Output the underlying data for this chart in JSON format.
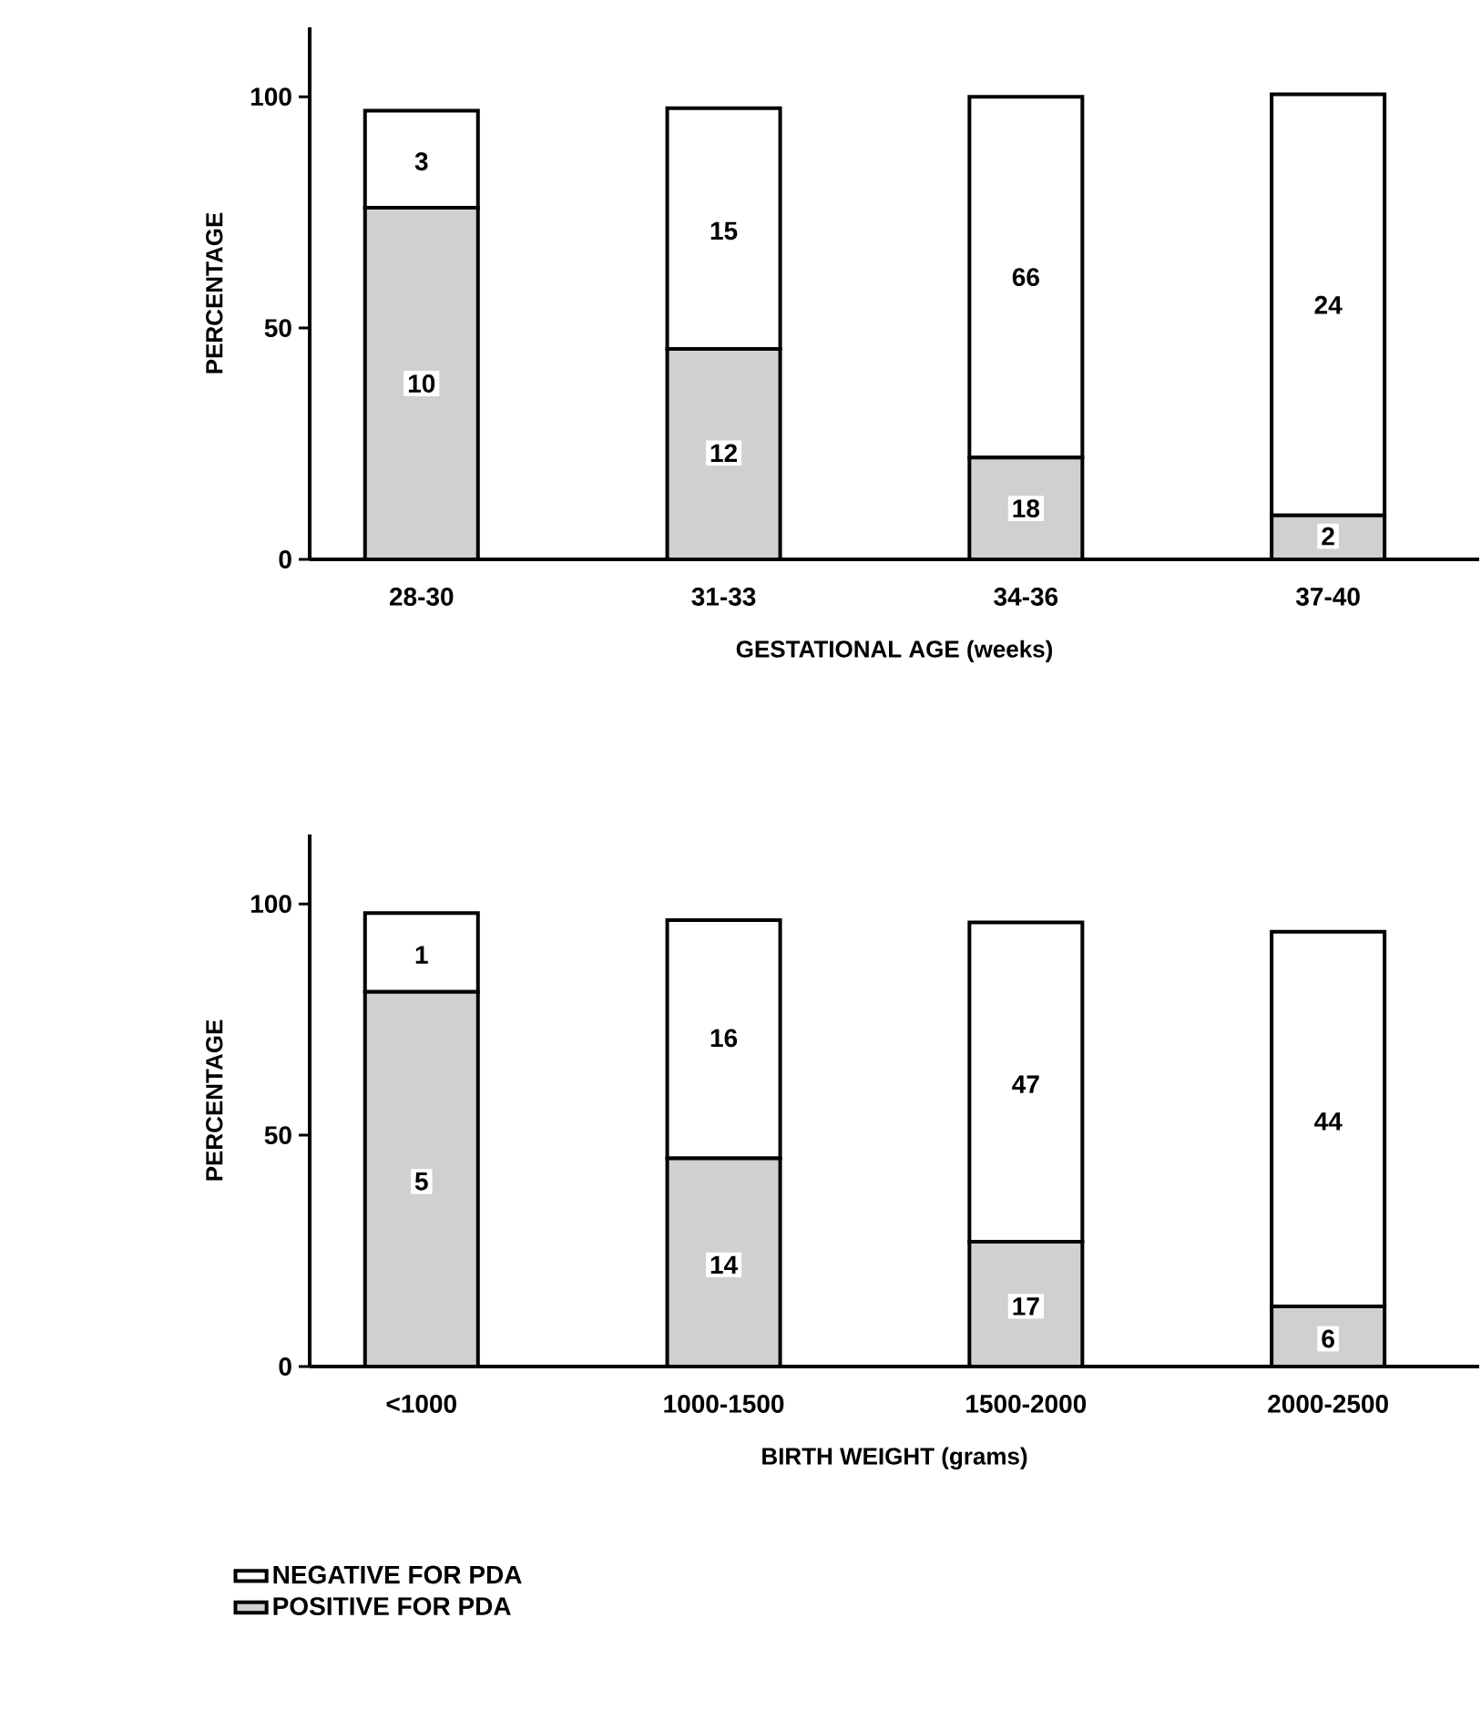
{
  "chart_data": [
    {
      "type": "bar",
      "stacked": true,
      "xlabel": "GESTATIONAL AGE (weeks)",
      "ylabel": "PERCENTAGE",
      "categories": [
        "28-30",
        "31-33",
        "34-36",
        "37-40"
      ],
      "ylim": [
        0,
        115
      ],
      "yticks": [
        0,
        50,
        100
      ],
      "series": [
        {
          "color": "#d0d0d0",
          "values": [
            76,
            45.5,
            22,
            9.5
          ]
        },
        {
          "color": "#ffffff",
          "values": [
            21,
            52,
            78,
            91
          ]
        }
      ],
      "annotations": [
        {
          "text": "10",
          "x": "28-30",
          "y": 38
        },
        {
          "text": "12",
          "x": "31-33",
          "y": 23
        },
        {
          "text": "18",
          "x": "34-36",
          "y": 11
        },
        {
          "text": "2",
          "x": "37-40",
          "y": 5
        },
        {
          "text": "3",
          "x": "28-30",
          "y": 86
        },
        {
          "text": "15",
          "x": "31-33",
          "y": 71
        },
        {
          "text": "66",
          "x": "34-36",
          "y": 61
        },
        {
          "text": "24",
          "x": "37-40",
          "y": 55
        }
      ]
    },
    {
      "type": "bar",
      "stacked": true,
      "xlabel": "BIRTH WEIGHT (grams)",
      "ylabel": "PERCENTAGE",
      "categories": [
        "<1000",
        "1000-1500",
        "1500-2000",
        "2000-2500"
      ],
      "ylim": [
        0,
        115
      ],
      "yticks": [
        0,
        50,
        100
      ],
      "legend": "bottom",
      "series": [
        {
          "name": "POSITIVE FOR PDA",
          "color": "#d0d0d0",
          "values": [
            81,
            45,
            27,
            13
          ]
        },
        {
          "name": "NEGATIVE FOR PDA",
          "color": "#ffffff",
          "values": [
            17,
            51.5,
            69,
            81
          ]
        }
      ],
      "annotations": [
        {
          "text": "5",
          "x": "<1000",
          "y": 40
        },
        {
          "text": "14",
          "x": "1000-1500",
          "y": 22
        },
        {
          "text": "17",
          "x": "1500-2000",
          "y": 13
        },
        {
          "text": "6",
          "x": "2000-2500",
          "y": 6
        },
        {
          "text": "1",
          "x": "<1000",
          "y": 89
        },
        {
          "text": "16",
          "x": "1000-1500",
          "y": 71
        },
        {
          "text": "47",
          "x": "1500-2000",
          "y": 61
        },
        {
          "text": "44",
          "x": "2000-2500",
          "y": 53
        }
      ]
    }
  ]
}
